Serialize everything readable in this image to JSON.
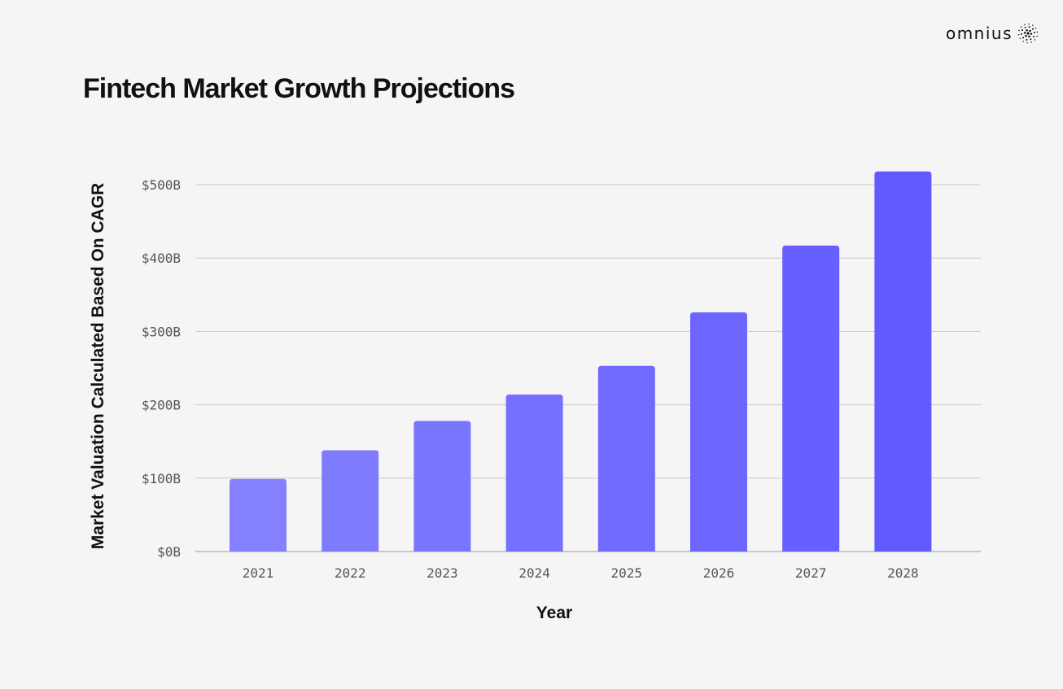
{
  "brand": {
    "name": "omnius",
    "logo_icon": "dotted-sphere-icon"
  },
  "chart_data": {
    "type": "bar",
    "title": "Fintech Market Growth Projections",
    "xlabel": "Year",
    "ylabel": "Market Valuation Calculated Based On CAGR",
    "categories": [
      "2021",
      "2022",
      "2023",
      "2024",
      "2025",
      "2026",
      "2027",
      "2028"
    ],
    "values": [
      99,
      138,
      178,
      214,
      253,
      326,
      417,
      518
    ],
    "ylim": [
      0,
      500
    ],
    "yticks": [
      0,
      100,
      200,
      300,
      400,
      500
    ],
    "ytick_labels": [
      "$0B",
      "$100B",
      "$200B",
      "$300B",
      "$400B",
      "$500B"
    ],
    "grid": true,
    "legend": "none",
    "colors": {
      "bar_start": "#8480ff",
      "bar_end": "#625aff",
      "grid": "#c8c8c8",
      "background": "#f5f5f5"
    }
  }
}
